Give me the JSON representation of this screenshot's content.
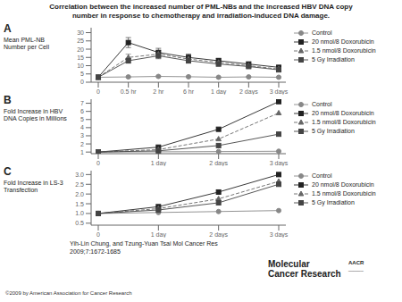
{
  "title": [
    "Correlation between the increased number of PML-NBs and the increased HBV DNA copy",
    "number in response to chemotherapy and irradiation-induced DNA damage."
  ],
  "annotations": [
    "Yih-Lin Chung, and Tzung-Yuan Tsai Mol Cancer Res",
    "2009;7:1672-1685",
    "©2009 by American Association for Cancer Research",
    "Molecular",
    "Cancer Research",
    "AACR",
    "______"
  ],
  "chart_data": [
    {
      "type": "line",
      "title": "A",
      "y_label": "Mean PML-NB Number per Cell",
      "categories": [
        "0",
        "0.5 hr",
        "2 hr",
        "6 hr",
        "1 day",
        "2 days",
        "3 days"
      ],
      "ylim": [
        0,
        33
      ],
      "yticks": [
        0,
        5,
        10,
        15,
        20,
        25,
        30
      ],
      "grid": false,
      "legend": "upper left",
      "series": [
        {
          "name": "Control",
          "color": "#888888",
          "marker": "circle",
          "line_style": "solid",
          "values": [
            3.0,
            3.2,
            3.5,
            3.3,
            3.0,
            3.2,
            3.0
          ],
          "yerr": [
            0.3,
            0.4,
            0.5,
            0.4,
            0.3,
            0.3,
            0.3
          ]
        },
        {
          "name": "20 nmol/8 Doxorubicin",
          "color": "#222222",
          "marker": "square",
          "line_style": "solid",
          "values": [
            3.0,
            24,
            18,
            15,
            13,
            11,
            9
          ],
          "yerr": [
            0.5,
            3.0,
            2.5,
            2.0,
            1.5,
            1.2,
            1.0
          ]
        },
        {
          "name": "1.5 nmol/8 Doxorubicin",
          "color": "#666666",
          "marker": "triangle",
          "line_style": "dashed",
          "values": [
            3.0,
            15,
            17,
            14,
            12,
            10,
            8
          ],
          "yerr": [
            0.5,
            2.0,
            2.2,
            1.8,
            1.4,
            1.1,
            0.9
          ]
        },
        {
          "name": "5 Gy Irradiation",
          "color": "#444444",
          "marker": "square",
          "line_style": "solid",
          "values": [
            3.0,
            13,
            16,
            13,
            11,
            9.5,
            7.5
          ],
          "yerr": [
            0.5,
            1.5,
            1.8,
            1.5,
            1.2,
            1.0,
            0.8
          ]
        }
      ]
    },
    {
      "type": "line",
      "title": "B",
      "y_label": "Fold Increase in HBV DNA Copies in Millions",
      "categories": [
        "0",
        "1 day",
        "2 days",
        "3 days"
      ],
      "ylim": [
        0.8,
        7.5
      ],
      "yticks": [
        1,
        2,
        3,
        4,
        5,
        6,
        7
      ],
      "grid": false,
      "legend": "upper left",
      "series": [
        {
          "name": "Control",
          "color": "#888888",
          "marker": "circle",
          "line_style": "solid",
          "values": [
            1.0,
            1.03,
            1.06,
            1.1
          ]
        },
        {
          "name": "20 nmol/8 Doxorubicin",
          "color": "#222222",
          "marker": "square",
          "line_style": "solid",
          "values": [
            1.0,
            1.6,
            3.8,
            7.2
          ]
        },
        {
          "name": "1.5 nmol/8 Doxorubicin",
          "color": "#666666",
          "marker": "triangle",
          "line_style": "dashed",
          "values": [
            1.0,
            1.3,
            2.6,
            5.8
          ]
        },
        {
          "name": "5 Gy Irradiation",
          "color": "#444444",
          "marker": "square",
          "line_style": "solid",
          "values": [
            1.0,
            1.15,
            1.8,
            3.2
          ]
        }
      ]
    },
    {
      "type": "line",
      "title": "C",
      "y_label": "Fold Increase in LS-3 Transfection",
      "categories": [
        "0",
        "1 day",
        "2 days",
        "3 days"
      ],
      "ylim": [
        0.4,
        3.2
      ],
      "yticks": [
        0.5,
        {
          "value": 1.0,
          "label": "1.0"
        },
        1.5,
        {
          "value": 2.0,
          "label": "2.0"
        },
        2.5,
        {
          "value": 3.0,
          "label": "3.0"
        }
      ],
      "grid": false,
      "legend": "upper left",
      "series": [
        {
          "name": "Control",
          "color": "#888888",
          "marker": "circle",
          "line_style": "solid",
          "values": [
            1.0,
            1.05,
            1.1,
            1.15
          ]
        },
        {
          "name": "20 nmol/8 Doxorubicin",
          "color": "#222222",
          "marker": "square",
          "line_style": "solid",
          "values": [
            1.0,
            1.35,
            2.1,
            3.0
          ]
        },
        {
          "name": "1.5 nmol/8 Doxorubicin",
          "color": "#666666",
          "marker": "triangle",
          "line_style": "dashed",
          "values": [
            1.0,
            1.25,
            1.75,
            2.65
          ]
        },
        {
          "name": "5 Gy Irradiation",
          "color": "#444444",
          "marker": "square",
          "line_style": "solid",
          "values": [
            1.0,
            1.18,
            1.55,
            2.5
          ]
        }
      ]
    }
  ]
}
